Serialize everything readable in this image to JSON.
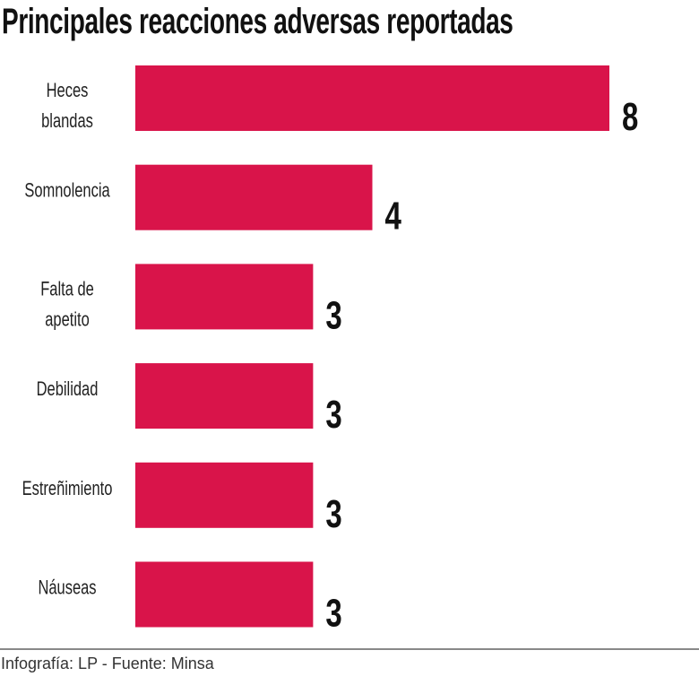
{
  "chart_data": {
    "type": "bar",
    "orientation": "horizontal",
    "title": "Principales reacciones adversas reportadas",
    "categories": [
      [
        "Heces",
        "blandas"
      ],
      [
        "Somnolencia"
      ],
      [
        "Falta de",
        "apetito"
      ],
      [
        "Debilidad"
      ],
      [
        "Estreñimiento"
      ],
      [
        "Náuseas"
      ]
    ],
    "values": [
      8,
      4,
      3,
      3,
      3,
      3
    ],
    "bar_color": "#D9144A",
    "grid": false,
    "xlim": [
      0,
      8
    ]
  },
  "footer": "Infografía: LP - Fuente: Minsa"
}
